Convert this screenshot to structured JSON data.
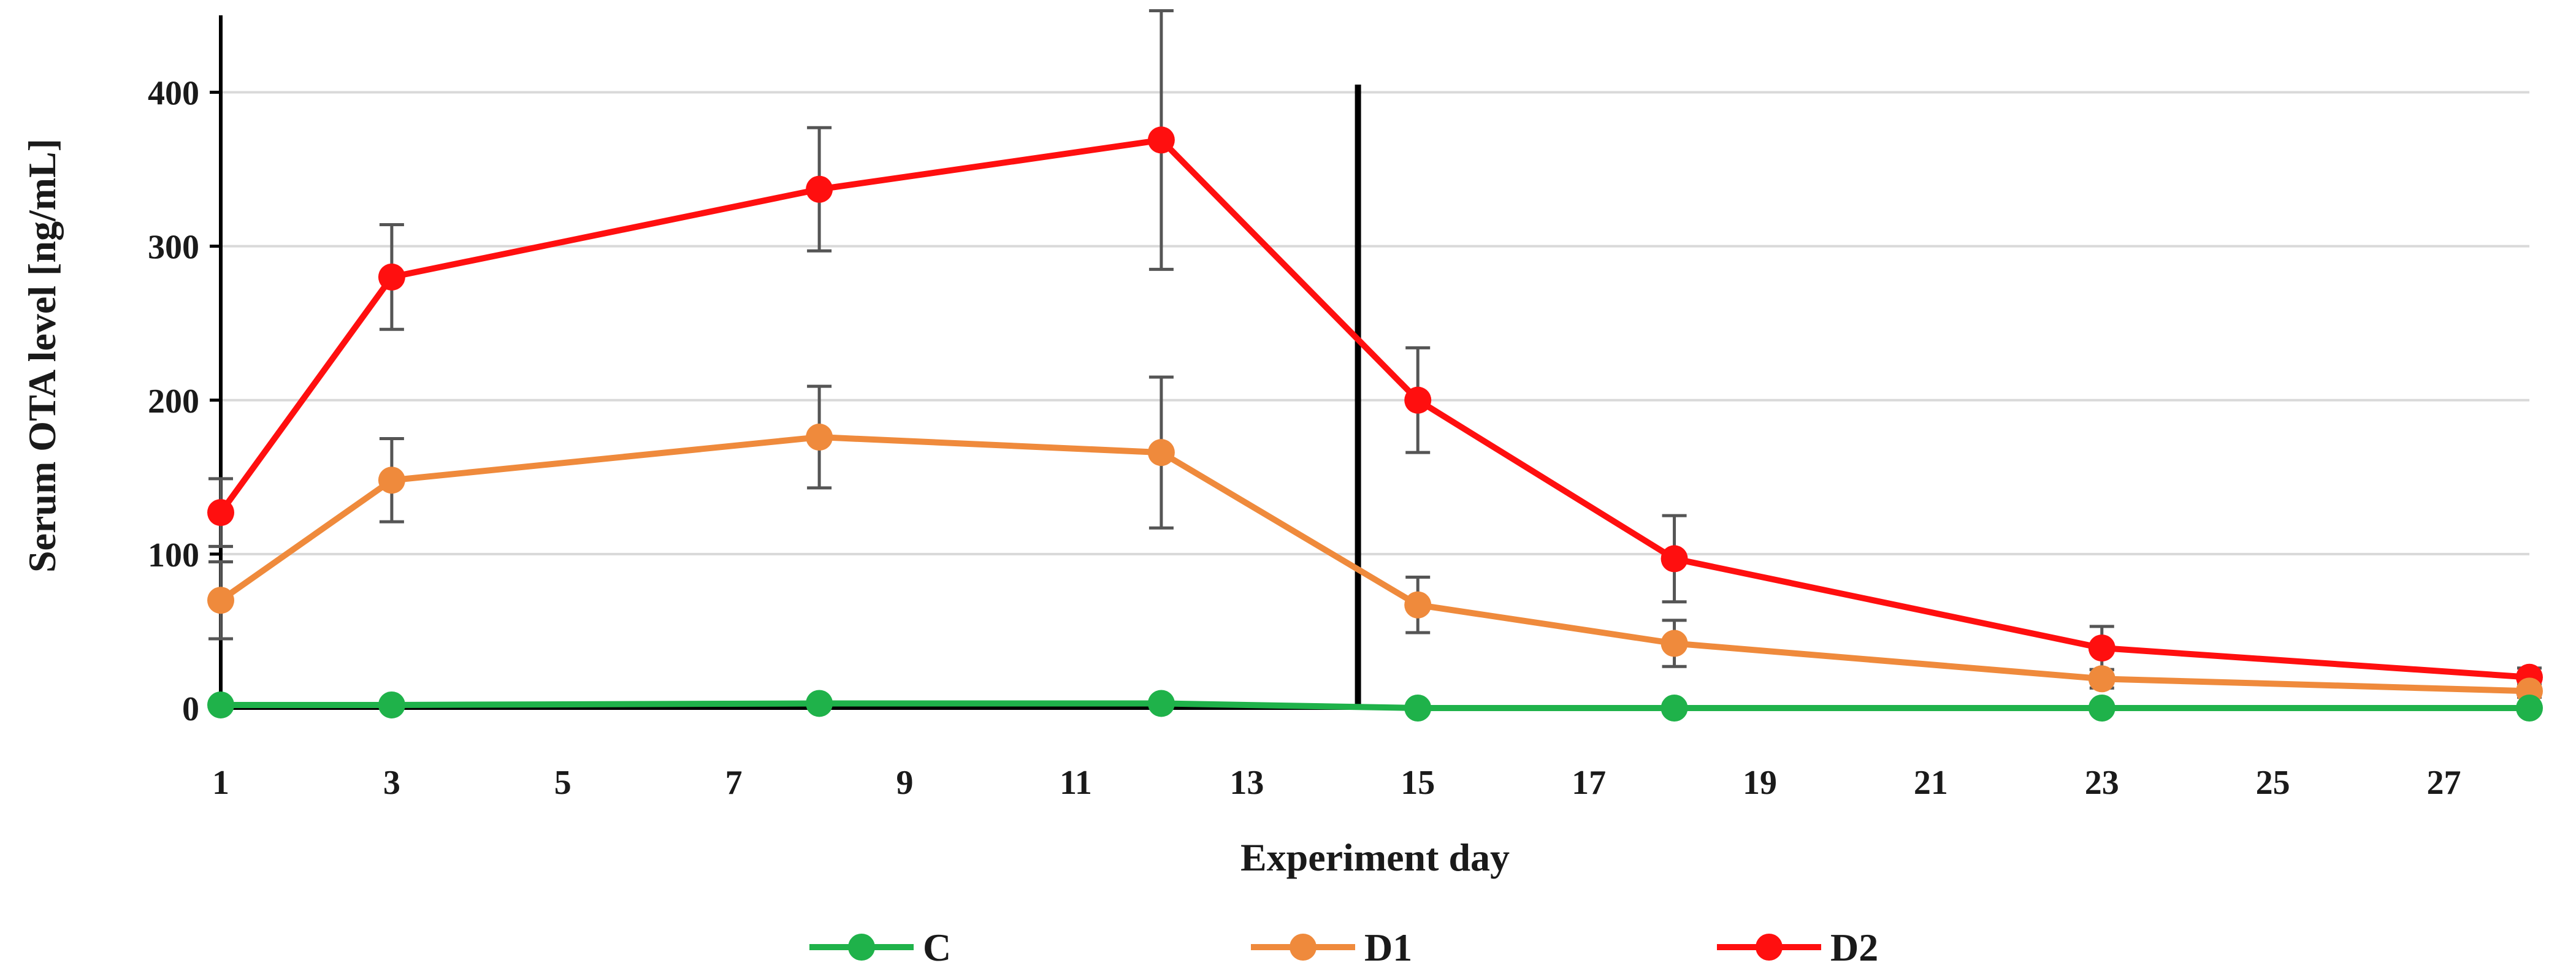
{
  "chart_data": {
    "type": "line",
    "title": "",
    "xlabel": "Experiment day",
    "ylabel": "Serum OTA level [ng/mL]",
    "xlim": [
      1,
      28
    ],
    "ylim": [
      0,
      450
    ],
    "x_ticks": [
      "1",
      "3",
      "5",
      "7",
      "9",
      "11",
      "13",
      "15",
      "17",
      "19",
      "21",
      "23",
      "25",
      "27"
    ],
    "y_ticks": [
      "0",
      "100",
      "200",
      "300",
      "400"
    ],
    "y_tick_values": [
      0,
      100,
      200,
      300,
      400
    ],
    "grid": "horizontal",
    "legend_position": "bottom",
    "vertical_marker_day": 14.3,
    "x": [
      1,
      3,
      8,
      12,
      15,
      18,
      23,
      28
    ],
    "series": [
      {
        "name": "C",
        "color": "#1fb24a",
        "values": [
          2,
          2,
          3,
          3,
          0,
          0,
          0,
          0
        ],
        "errors": [
          0,
          0,
          0,
          0,
          0,
          0,
          0,
          0
        ]
      },
      {
        "name": "D1",
        "color": "#ef8a3c",
        "values": [
          70,
          148,
          176,
          166,
          67,
          42,
          19,
          11
        ],
        "errors": [
          25,
          27,
          33,
          49,
          18,
          15,
          6,
          4
        ]
      },
      {
        "name": "D2",
        "color": "#ff0f0f",
        "values": [
          127,
          280,
          337,
          369,
          200,
          97,
          39,
          20
        ],
        "errors": [
          22,
          34,
          40,
          84,
          34,
          28,
          14,
          6
        ]
      }
    ]
  }
}
